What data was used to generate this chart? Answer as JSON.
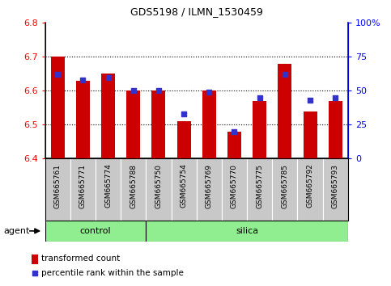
{
  "title": "GDS5198 / ILMN_1530459",
  "samples": [
    "GSM665761",
    "GSM665771",
    "GSM665774",
    "GSM665788",
    "GSM665750",
    "GSM665754",
    "GSM665769",
    "GSM665770",
    "GSM665775",
    "GSM665785",
    "GSM665792",
    "GSM665793"
  ],
  "n_control": 4,
  "n_silica": 8,
  "transformed_counts": [
    6.7,
    6.63,
    6.65,
    6.6,
    6.6,
    6.51,
    6.6,
    6.48,
    6.57,
    6.68,
    6.54,
    6.57
  ],
  "percentile_ranks": [
    62,
    58,
    60,
    50,
    50,
    33,
    49,
    20,
    45,
    62,
    43,
    45
  ],
  "y_min": 6.4,
  "y_max": 6.8,
  "y_ticks": [
    6.4,
    6.5,
    6.6,
    6.7,
    6.8
  ],
  "y2_ticks": [
    0,
    25,
    50,
    75,
    100
  ],
  "bar_color": "#CC0000",
  "dot_color": "#3333CC",
  "tick_bg_color": "#C8C8C8",
  "green_color": "#90EE90",
  "agent_label": "agent",
  "control_label": "control",
  "silica_label": "silica",
  "legend_bar": "transformed count",
  "legend_dot": "percentile rank within the sample",
  "bar_width": 0.55
}
